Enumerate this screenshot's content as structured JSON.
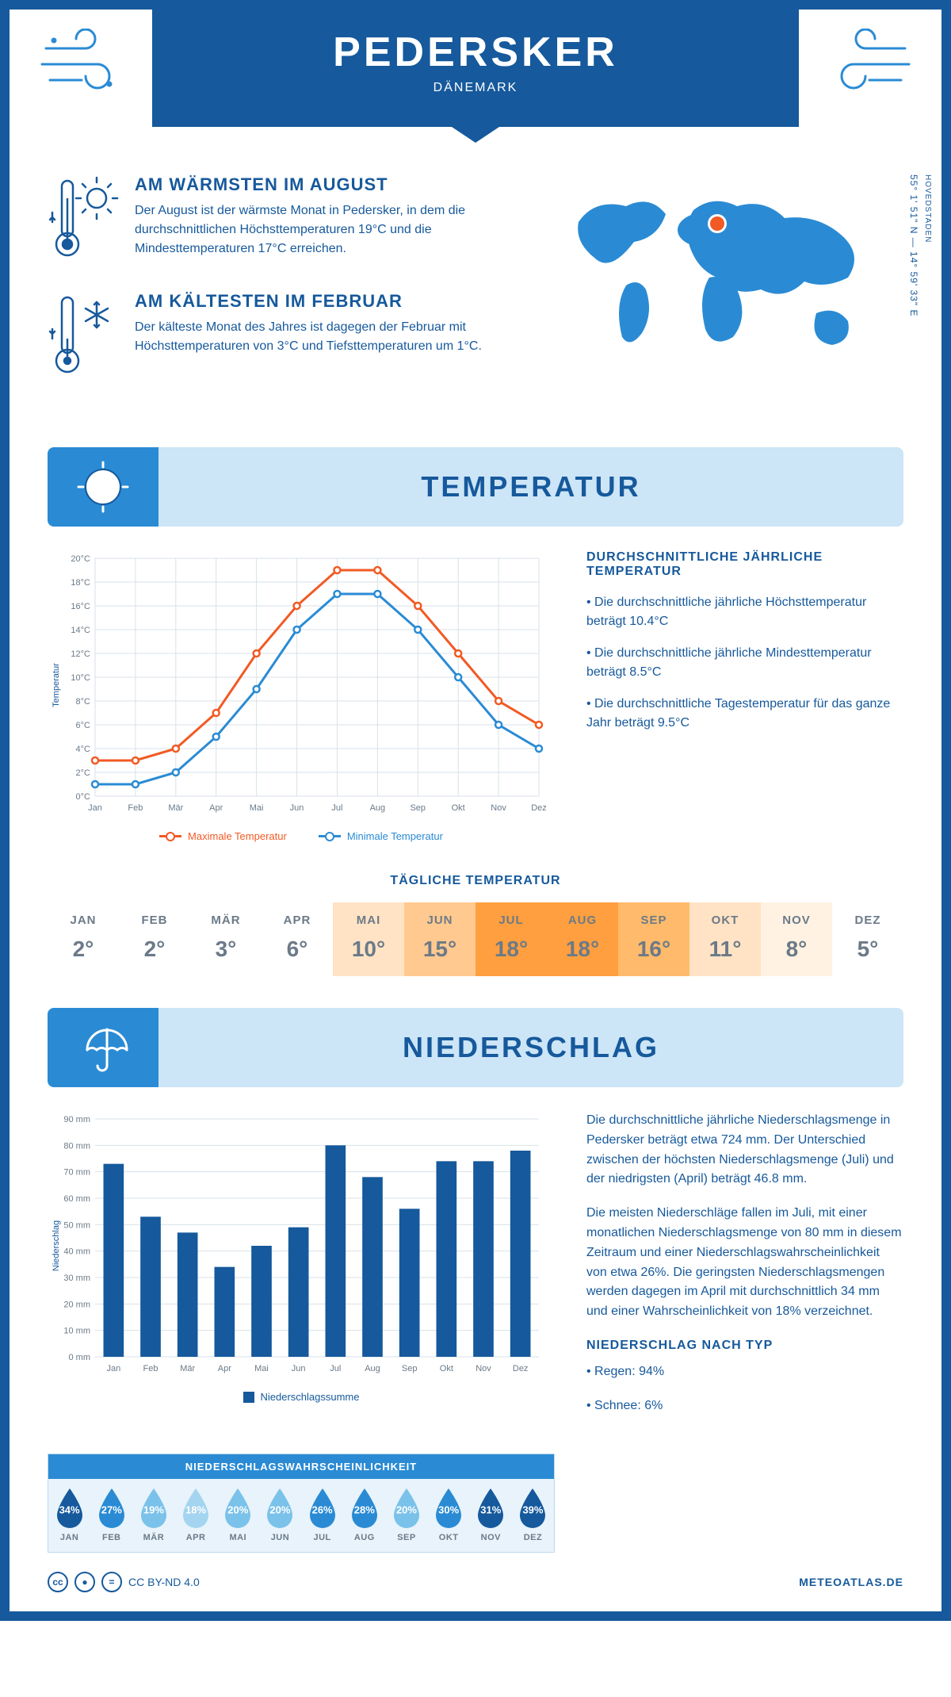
{
  "header": {
    "title": "PEDERSKER",
    "country": "DÄNEMARK"
  },
  "coords": "55° 1' 51\" N — 14° 59' 33\" E",
  "region": "HOVEDSTADEN",
  "colors": {
    "primary": "#16599c",
    "accent": "#2a8bd4",
    "light": "#cce5f7",
    "max_line": "#f15a24",
    "min_line": "#2a8bd4",
    "grid": "#d8e2ea",
    "text_muted": "#6b7a88"
  },
  "facts": {
    "warm": {
      "title": "AM WÄRMSTEN IM AUGUST",
      "text": "Der August ist der wärmste Monat in Pedersker, in dem die durchschnittlichen Höchsttemperaturen 19°C und die Mindesttemperaturen 17°C erreichen."
    },
    "cold": {
      "title": "AM KÄLTESTEN IM FEBRUAR",
      "text": "Der kälteste Monat des Jahres ist dagegen der Februar mit Höchsttemperaturen von 3°C und Tiefsttemperaturen um 1°C."
    }
  },
  "sections": {
    "temp": "TEMPERATUR",
    "precip": "NIEDERSCHLAG"
  },
  "months": [
    "Jan",
    "Feb",
    "Mär",
    "Apr",
    "Mai",
    "Jun",
    "Jul",
    "Aug",
    "Sep",
    "Okt",
    "Nov",
    "Dez"
  ],
  "months_upper": [
    "JAN",
    "FEB",
    "MÄR",
    "APR",
    "MAI",
    "JUN",
    "JUL",
    "AUG",
    "SEP",
    "OKT",
    "NOV",
    "DEZ"
  ],
  "temp_chart": {
    "ylabel": "Temperatur",
    "max": [
      3,
      3,
      4,
      7,
      12,
      16,
      19,
      19,
      16,
      12,
      8,
      6
    ],
    "min": [
      1,
      1,
      2,
      5,
      9,
      14,
      17,
      17,
      14,
      10,
      6,
      4
    ],
    "ylim": [
      0,
      20
    ],
    "ytick_step": 2,
    "legend_max": "Maximale Temperatur",
    "legend_min": "Minimale Temperatur"
  },
  "temp_info": {
    "title": "DURCHSCHNITTLICHE JÄHRLICHE TEMPERATUR",
    "b1": "• Die durchschnittliche jährliche Höchsttemperatur beträgt 10.4°C",
    "b2": "• Die durchschnittliche jährliche Mindesttemperatur beträgt 8.5°C",
    "b3": "• Die durchschnittliche Tagestemperatur für das ganze Jahr beträgt 9.5°C"
  },
  "daily": {
    "title": "TÄGLICHE TEMPERATUR",
    "values": [
      "2°",
      "2°",
      "3°",
      "6°",
      "10°",
      "15°",
      "18°",
      "18°",
      "16°",
      "11°",
      "8°",
      "5°"
    ],
    "bg": [
      "#ffffff",
      "#ffffff",
      "#ffffff",
      "#ffffff",
      "#ffe3c4",
      "#ffc98f",
      "#ff9f3f",
      "#ff9f3f",
      "#ffba6b",
      "#ffe3c4",
      "#fff2e2",
      "#ffffff"
    ]
  },
  "precip_chart": {
    "ylabel": "Niederschlag",
    "values": [
      73,
      53,
      47,
      34,
      42,
      49,
      80,
      68,
      56,
      74,
      74,
      78
    ],
    "ylim": [
      0,
      90
    ],
    "ytick_step": 10,
    "legend": "Niederschlagssumme",
    "bar_color": "#16599c"
  },
  "precip_info": {
    "p1": "Die durchschnittliche jährliche Niederschlagsmenge in Pedersker beträgt etwa 724 mm. Der Unterschied zwischen der höchsten Niederschlagsmenge (Juli) und der niedrigsten (April) beträgt 46.8 mm.",
    "p2": "Die meisten Niederschläge fallen im Juli, mit einer monatlichen Niederschlagsmenge von 80 mm in diesem Zeitraum und einer Niederschlagswahrscheinlichkeit von etwa 26%. Die geringsten Niederschlagsmengen werden dagegen im April mit durchschnittlich 34 mm und einer Wahrscheinlichkeit von 18% verzeichnet.",
    "type_title": "NIEDERSCHLAG NACH TYP",
    "type1": "• Regen: 94%",
    "type2": "• Schnee: 6%"
  },
  "prob": {
    "title": "NIEDERSCHLAGSWAHRSCHEINLICHKEIT",
    "values": [
      "34%",
      "27%",
      "19%",
      "18%",
      "20%",
      "20%",
      "26%",
      "28%",
      "20%",
      "30%",
      "31%",
      "39%"
    ],
    "colors": [
      "#16599c",
      "#2a8bd4",
      "#7bc2ea",
      "#a4d4ef",
      "#7bc2ea",
      "#7bc2ea",
      "#2a8bd4",
      "#2a8bd4",
      "#7bc2ea",
      "#2a8bd4",
      "#16599c",
      "#16599c"
    ]
  },
  "footer": {
    "license": "CC BY-ND 4.0",
    "site": "METEOATLAS.DE"
  }
}
